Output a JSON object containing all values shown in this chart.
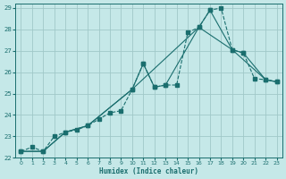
{
  "xlabel": "Humidex (Indice chaleur)",
  "bg_color": "#c5e8e8",
  "grid_color": "#a0c8c8",
  "line_color": "#1a6e6e",
  "xlim": [
    -0.5,
    23.5
  ],
  "ylim": [
    22,
    29.2
  ],
  "xticks": [
    0,
    1,
    2,
    3,
    4,
    5,
    6,
    7,
    8,
    9,
    10,
    11,
    12,
    13,
    14,
    15,
    16,
    17,
    18,
    19,
    20,
    21,
    22,
    23
  ],
  "yticks": [
    22,
    23,
    24,
    25,
    26,
    27,
    28,
    29
  ],
  "line_zigzag_x": [
    0,
    1,
    2,
    3,
    4,
    5,
    6,
    7,
    8,
    9,
    10,
    11,
    12,
    13,
    14,
    15,
    16,
    17,
    18,
    19,
    20,
    21,
    22,
    23
  ],
  "line_zigzag_y": [
    22.3,
    22.5,
    22.3,
    23.0,
    23.2,
    23.3,
    23.5,
    23.8,
    24.1,
    24.2,
    25.2,
    26.4,
    25.3,
    25.4,
    25.4,
    27.85,
    28.1,
    28.9,
    29.0,
    27.05,
    26.9,
    25.7,
    25.65,
    25.55
  ],
  "line_upper_x": [
    0,
    2,
    4,
    6,
    10,
    11,
    12,
    13,
    16,
    17,
    19,
    20,
    22,
    23
  ],
  "line_upper_y": [
    22.3,
    22.3,
    23.2,
    23.5,
    25.2,
    26.4,
    25.3,
    25.4,
    28.1,
    28.9,
    27.05,
    26.9,
    25.65,
    25.55
  ],
  "line_lower_x": [
    0,
    2,
    4,
    6,
    10,
    16,
    19,
    22,
    23
  ],
  "line_lower_y": [
    22.3,
    22.3,
    23.2,
    23.5,
    25.2,
    28.1,
    27.05,
    25.65,
    25.55
  ]
}
